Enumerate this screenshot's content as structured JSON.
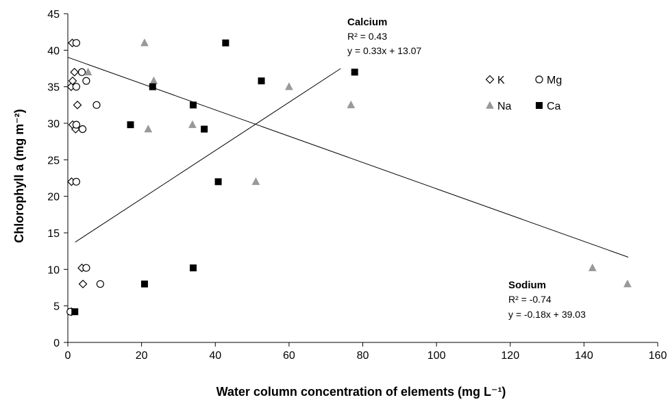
{
  "chart_data": {
    "type": "scatter",
    "title": "",
    "xlabel": "Water column concentration of elements (mg L⁻¹)",
    "ylabel": "Chlorophyll a (mg m⁻²)",
    "xlim": [
      0,
      160
    ],
    "ylim": [
      0,
      45
    ],
    "xticks": [
      "0",
      "20",
      "40",
      "60",
      "80",
      "100",
      "120",
      "140",
      "160"
    ],
    "yticks": [
      "0",
      "5",
      "10",
      "15",
      "20",
      "25",
      "30",
      "35",
      "40",
      "45"
    ],
    "legend_position": "right",
    "series": [
      {
        "name": "K",
        "marker": "diamond-open",
        "color": "#000000",
        "x": [
          1.2,
          1.8,
          0.9,
          1.3,
          2.6,
          1.3,
          2.1,
          1.0,
          3.8,
          4.1,
          1.0
        ],
        "y": [
          41.0,
          37.0,
          35.0,
          35.8,
          32.5,
          29.8,
          29.2,
          22.0,
          10.2,
          8.0,
          4.2
        ]
      },
      {
        "name": "Mg",
        "marker": "circle-open",
        "color": "#000000",
        "x": [
          2.3,
          3.8,
          2.3,
          5.0,
          7.8,
          2.3,
          4.0,
          2.3,
          5.0,
          8.8,
          0.7
        ],
        "y": [
          41.0,
          37.0,
          35.0,
          35.8,
          32.5,
          29.8,
          29.2,
          22.0,
          10.2,
          8.0,
          4.2
        ]
      },
      {
        "name": "Na",
        "marker": "triangle",
        "color": "#999999",
        "x": [
          20.8,
          5.5,
          23.3,
          60.0,
          76.8,
          33.8,
          21.8,
          51.0,
          142.3,
          151.8
        ],
        "y": [
          41.0,
          37.0,
          35.8,
          35.0,
          32.5,
          29.8,
          29.2,
          22.0,
          10.2,
          8.0
        ]
      },
      {
        "name": "Ca",
        "marker": "square",
        "color": "#000000",
        "x": [
          42.8,
          77.8,
          23.0,
          52.5,
          34.0,
          17.0,
          37.0,
          40.8,
          34.0,
          20.8,
          1.9
        ],
        "y": [
          41.0,
          37.0,
          35.0,
          35.8,
          32.5,
          29.8,
          29.2,
          22.0,
          10.2,
          8.0,
          4.2
        ]
      }
    ],
    "trendlines": [
      {
        "name": "Calcium",
        "slope": 0.33,
        "intercept": 13.07,
        "x_range": [
          2,
          74
        ]
      },
      {
        "name": "Sodium",
        "slope": -0.18,
        "intercept": 39.03,
        "x_range": [
          0,
          152
        ]
      }
    ],
    "annotations": [
      {
        "title": "Calcium",
        "line1": "R² = 0.43",
        "line2": "y = 0.33x + 13.07"
      },
      {
        "title": "Sodium",
        "line1": "R² = -0.74",
        "line2": "y = -0.18x + 39.03"
      }
    ]
  }
}
